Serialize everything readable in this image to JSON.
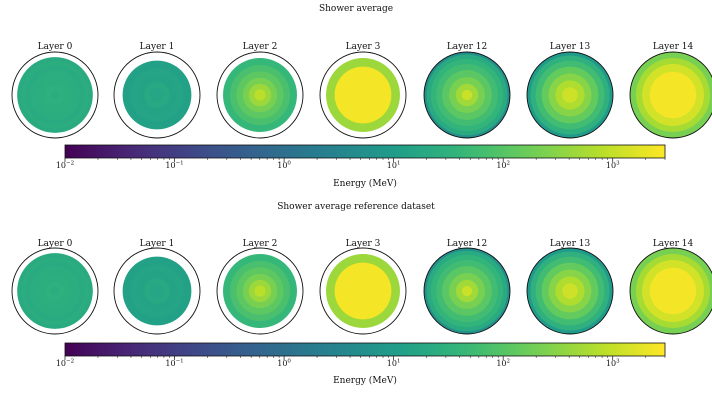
{
  "chart_data": [
    {
      "type": "heatmap",
      "title": "Shower average",
      "colorbar": {
        "label": "Energy (MeV)",
        "scale": "log",
        "range": [
          0.01,
          3000
        ],
        "colormap": "viridis",
        "ticks": [
          {
            "value": 0.01,
            "base": "10",
            "exp": "−2"
          },
          {
            "value": 0.1,
            "base": "10",
            "exp": "−1"
          },
          {
            "value": 1,
            "base": "10",
            "exp": "0"
          },
          {
            "value": 10,
            "base": "10",
            "exp": "1"
          },
          {
            "value": 100,
            "base": "10",
            "exp": "2"
          },
          {
            "value": 1000,
            "base": "10",
            "exp": "3"
          }
        ]
      },
      "layers": [
        {
          "label": "Layer 0",
          "outer_radius": 0.88,
          "rings": [
            {
              "r": 0.88,
              "e": 22
            },
            {
              "r": 0.78,
              "e": 26
            },
            {
              "r": 0.7,
              "e": 22
            },
            {
              "r": 0.58,
              "e": 25
            },
            {
              "r": 0.4,
              "e": 27
            },
            {
              "r": 0.22,
              "e": 30
            },
            {
              "r": 0.1,
              "e": 26
            }
          ]
        },
        {
          "label": "Layer 1",
          "outer_radius": 0.8,
          "rings": [
            {
              "r": 0.8,
              "e": 13
            },
            {
              "r": 0.62,
              "e": 16
            },
            {
              "r": 0.45,
              "e": 15
            },
            {
              "r": 0.3,
              "e": 19
            },
            {
              "r": 0.16,
              "e": 17
            }
          ]
        },
        {
          "label": "Layer 2",
          "outer_radius": 0.86,
          "rings": [
            {
              "r": 0.86,
              "e": 45
            },
            {
              "r": 0.7,
              "e": 75
            },
            {
              "r": 0.55,
              "e": 120
            },
            {
              "r": 0.4,
              "e": 220
            },
            {
              "r": 0.26,
              "e": 450
            },
            {
              "r": 0.13,
              "e": 800
            }
          ]
        },
        {
          "label": "Layer 3",
          "outer_radius": 0.86,
          "rings": [
            {
              "r": 0.86,
              "e": 450
            },
            {
              "r": 0.66,
              "e": 2500
            }
          ]
        },
        {
          "label": "Layer 12",
          "outer_radius": 1.0,
          "rings": [
            {
              "r": 1.0,
              "e": 5
            },
            {
              "r": 0.94,
              "e": 22
            },
            {
              "r": 0.84,
              "e": 38
            },
            {
              "r": 0.72,
              "e": 60
            },
            {
              "r": 0.58,
              "e": 110
            },
            {
              "r": 0.42,
              "e": 220
            },
            {
              "r": 0.26,
              "e": 500
            },
            {
              "r": 0.12,
              "e": 1100
            }
          ]
        },
        {
          "label": "Layer 13",
          "outer_radius": 1.0,
          "rings": [
            {
              "r": 1.0,
              "e": 9
            },
            {
              "r": 0.92,
              "e": 30
            },
            {
              "r": 0.8,
              "e": 60
            },
            {
              "r": 0.66,
              "e": 140
            },
            {
              "r": 0.5,
              "e": 300
            },
            {
              "r": 0.34,
              "e": 650
            },
            {
              "r": 0.18,
              "e": 1200
            }
          ]
        },
        {
          "label": "Layer 14",
          "outer_radius": 1.0,
          "rings": [
            {
              "r": 1.0,
              "e": 220
            },
            {
              "r": 0.86,
              "e": 550
            },
            {
              "r": 0.72,
              "e": 1300
            },
            {
              "r": 0.54,
              "e": 2500
            }
          ]
        }
      ]
    },
    {
      "type": "heatmap",
      "title": "Shower average reference dataset",
      "colorbar": {
        "label": "Energy (MeV)",
        "scale": "log",
        "range": [
          0.01,
          3000
        ],
        "colormap": "viridis",
        "ticks": [
          {
            "value": 0.01,
            "base": "10",
            "exp": "−2"
          },
          {
            "value": 0.1,
            "base": "10",
            "exp": "−1"
          },
          {
            "value": 1,
            "base": "10",
            "exp": "0"
          },
          {
            "value": 10,
            "base": "10",
            "exp": "1"
          },
          {
            "value": 100,
            "base": "10",
            "exp": "2"
          },
          {
            "value": 1000,
            "base": "10",
            "exp": "3"
          }
        ]
      },
      "layers": [
        {
          "label": "Layer 0",
          "outer_radius": 0.88,
          "rings": [
            {
              "r": 0.88,
              "e": 22
            },
            {
              "r": 0.78,
              "e": 26
            },
            {
              "r": 0.7,
              "e": 22
            },
            {
              "r": 0.58,
              "e": 25
            },
            {
              "r": 0.4,
              "e": 27
            },
            {
              "r": 0.22,
              "e": 30
            },
            {
              "r": 0.1,
              "e": 26
            }
          ]
        },
        {
          "label": "Layer 1",
          "outer_radius": 0.8,
          "rings": [
            {
              "r": 0.8,
              "e": 13
            },
            {
              "r": 0.62,
              "e": 16
            },
            {
              "r": 0.45,
              "e": 15
            },
            {
              "r": 0.3,
              "e": 19
            },
            {
              "r": 0.16,
              "e": 17
            }
          ]
        },
        {
          "label": "Layer 2",
          "outer_radius": 0.86,
          "rings": [
            {
              "r": 0.86,
              "e": 45
            },
            {
              "r": 0.7,
              "e": 75
            },
            {
              "r": 0.55,
              "e": 120
            },
            {
              "r": 0.4,
              "e": 220
            },
            {
              "r": 0.26,
              "e": 450
            },
            {
              "r": 0.13,
              "e": 800
            }
          ]
        },
        {
          "label": "Layer 3",
          "outer_radius": 0.86,
          "rings": [
            {
              "r": 0.86,
              "e": 450
            },
            {
              "r": 0.66,
              "e": 2500
            }
          ]
        },
        {
          "label": "Layer 12",
          "outer_radius": 1.0,
          "rings": [
            {
              "r": 1.0,
              "e": 5
            },
            {
              "r": 0.94,
              "e": 22
            },
            {
              "r": 0.84,
              "e": 38
            },
            {
              "r": 0.72,
              "e": 60
            },
            {
              "r": 0.58,
              "e": 110
            },
            {
              "r": 0.42,
              "e": 220
            },
            {
              "r": 0.26,
              "e": 500
            },
            {
              "r": 0.12,
              "e": 1100
            }
          ]
        },
        {
          "label": "Layer 13",
          "outer_radius": 1.0,
          "rings": [
            {
              "r": 1.0,
              "e": 9
            },
            {
              "r": 0.92,
              "e": 30
            },
            {
              "r": 0.8,
              "e": 60
            },
            {
              "r": 0.66,
              "e": 140
            },
            {
              "r": 0.5,
              "e": 300
            },
            {
              "r": 0.34,
              "e": 650
            },
            {
              "r": 0.18,
              "e": 1200
            }
          ]
        },
        {
          "label": "Layer 14",
          "outer_radius": 1.0,
          "rings": [
            {
              "r": 1.0,
              "e": 220
            },
            {
              "r": 0.86,
              "e": 550
            },
            {
              "r": 0.72,
              "e": 1300
            },
            {
              "r": 0.54,
              "e": 2500
            }
          ]
        }
      ]
    }
  ]
}
